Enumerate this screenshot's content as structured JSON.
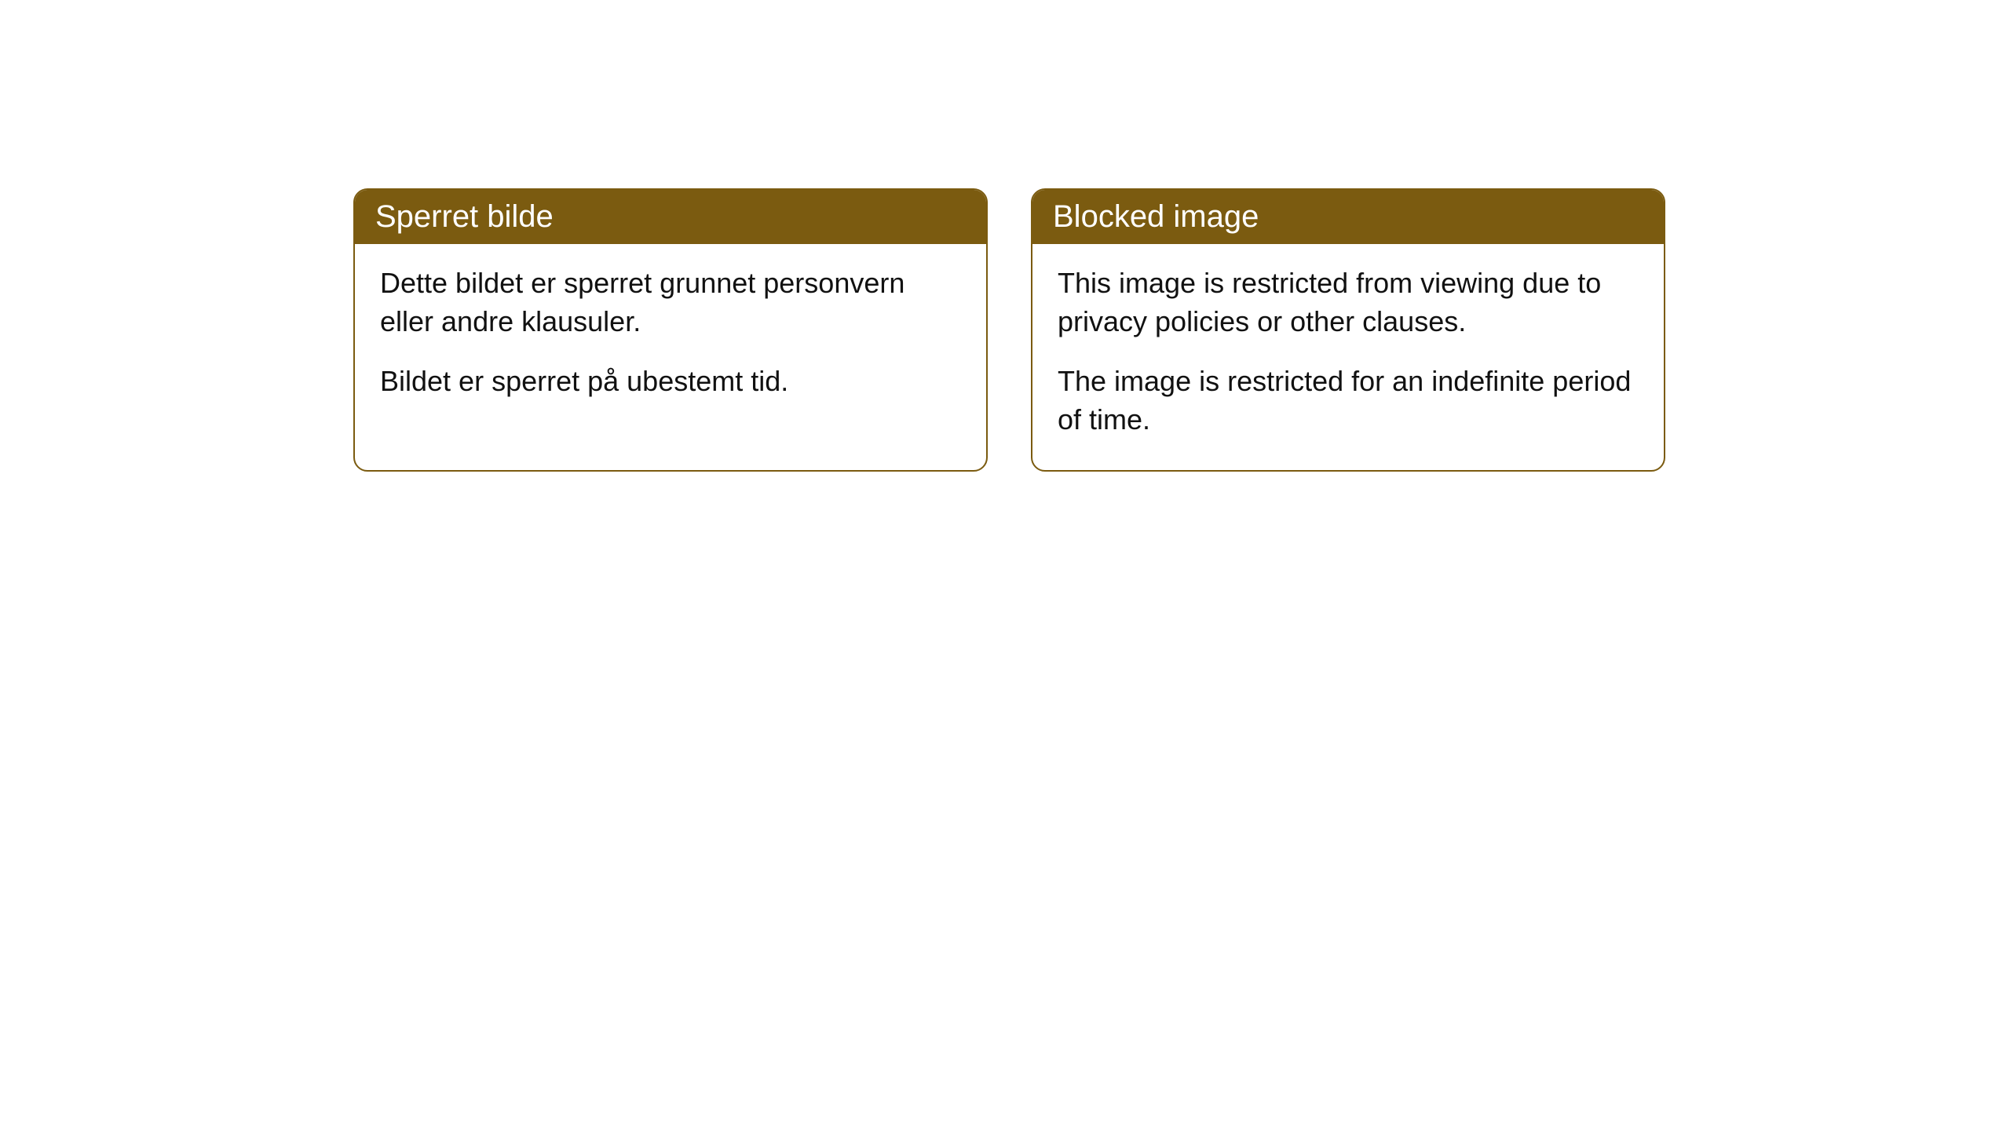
{
  "cards": [
    {
      "title": "Sperret bilde",
      "paragraph1": "Dette bildet er sperret grunnet personvern eller andre klausuler.",
      "paragraph2": "Bildet er sperret på ubestemt tid."
    },
    {
      "title": "Blocked image",
      "paragraph1": "This image is restricted from viewing due to privacy policies or other clauses.",
      "paragraph2": "The image is restricted for an indefinite period of time."
    }
  ],
  "styling": {
    "header_background": "#7b5b10",
    "header_text_color": "#ffffff",
    "card_border_color": "#7b5b10",
    "card_background": "#ffffff",
    "body_text_color": "#111111",
    "page_background": "#ffffff",
    "border_radius": 18,
    "header_fontsize": 40,
    "body_fontsize": 36
  }
}
